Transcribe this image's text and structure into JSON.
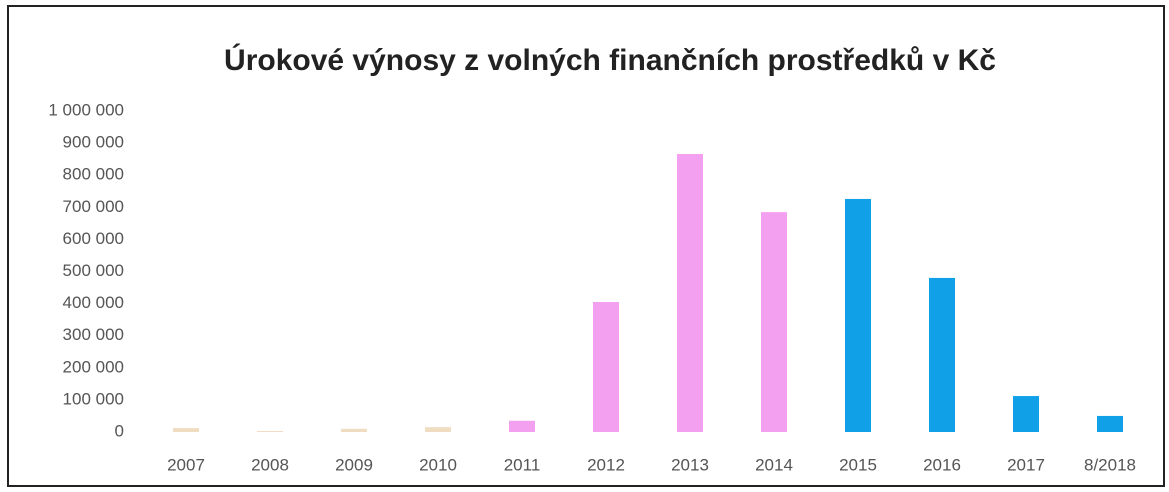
{
  "chart_data": {
    "type": "bar",
    "title": "Úrokové výnosy z volných finančních prostředků v Kč",
    "categories": [
      "2007",
      "2008",
      "2009",
      "2010",
      "2011",
      "2012",
      "2013",
      "2014",
      "2015",
      "2016",
      "2017",
      "8/2018"
    ],
    "values": [
      12000,
      3000,
      10000,
      15000,
      35000,
      405000,
      866000,
      685000,
      726000,
      480000,
      112000,
      50000
    ],
    "colors": [
      "#f0dcc0",
      "#f0dcc0",
      "#f0dcc0",
      "#f0dcc0",
      "#f4a0f0",
      "#f4a0f0",
      "#f4a0f0",
      "#f4a0f0",
      "#0fa0e8",
      "#0fa0e8",
      "#0fa0e8",
      "#0fa0e8"
    ],
    "ylim": [
      0,
      1000000
    ],
    "yticks": [
      0,
      {
        "value": 100000,
        "label": "100 000"
      },
      {
        "value": 200000,
        "label": "200 000"
      },
      {
        "value": 300000,
        "label": "300 000"
      },
      {
        "value": 400000,
        "label": "400 000"
      },
      {
        "value": 500000,
        "label": "500 000"
      },
      {
        "value": 600000,
        "label": "600 000"
      },
      {
        "value": 700000,
        "label": "700 000"
      },
      {
        "value": 800000,
        "label": "800 000"
      },
      {
        "value": 900000,
        "label": "900 000"
      },
      {
        "value": 1000000,
        "label": "1 000 000"
      }
    ],
    "grid": false
  }
}
